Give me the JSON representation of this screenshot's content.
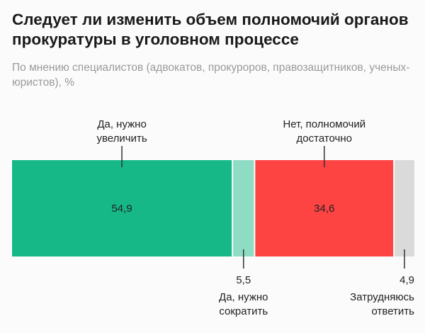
{
  "chart_data": {
    "type": "bar",
    "stacked": true,
    "orientation": "horizontal",
    "title": "Следует ли изменить объем полномочий органов прокуратуры в уголовном процессе",
    "subtitle": "По мнению специалистов (адвокатов, прокуроров, правозащитников, ученых-юристов), %",
    "segments": [
      {
        "name_lines": [
          "Да, нужно",
          "увеличить"
        ],
        "value": 54.9,
        "value_label": "54,9",
        "color": "#15b886",
        "label_position": "above"
      },
      {
        "name_lines": [
          "Да, нужно",
          "сократить"
        ],
        "value": 5.5,
        "value_label": "5,5",
        "color": "#8fdcc5",
        "label_position": "below"
      },
      {
        "name_lines": [
          "Нет, полномочий",
          "достаточно"
        ],
        "value": 34.6,
        "value_label": "34,6",
        "color": "#fe4343",
        "label_position": "above"
      },
      {
        "name_lines": [
          "Затрудняюсь",
          "ответить"
        ],
        "value": 4.9,
        "value_label": "4,9",
        "color": "#dadada",
        "label_position": "below"
      }
    ]
  }
}
